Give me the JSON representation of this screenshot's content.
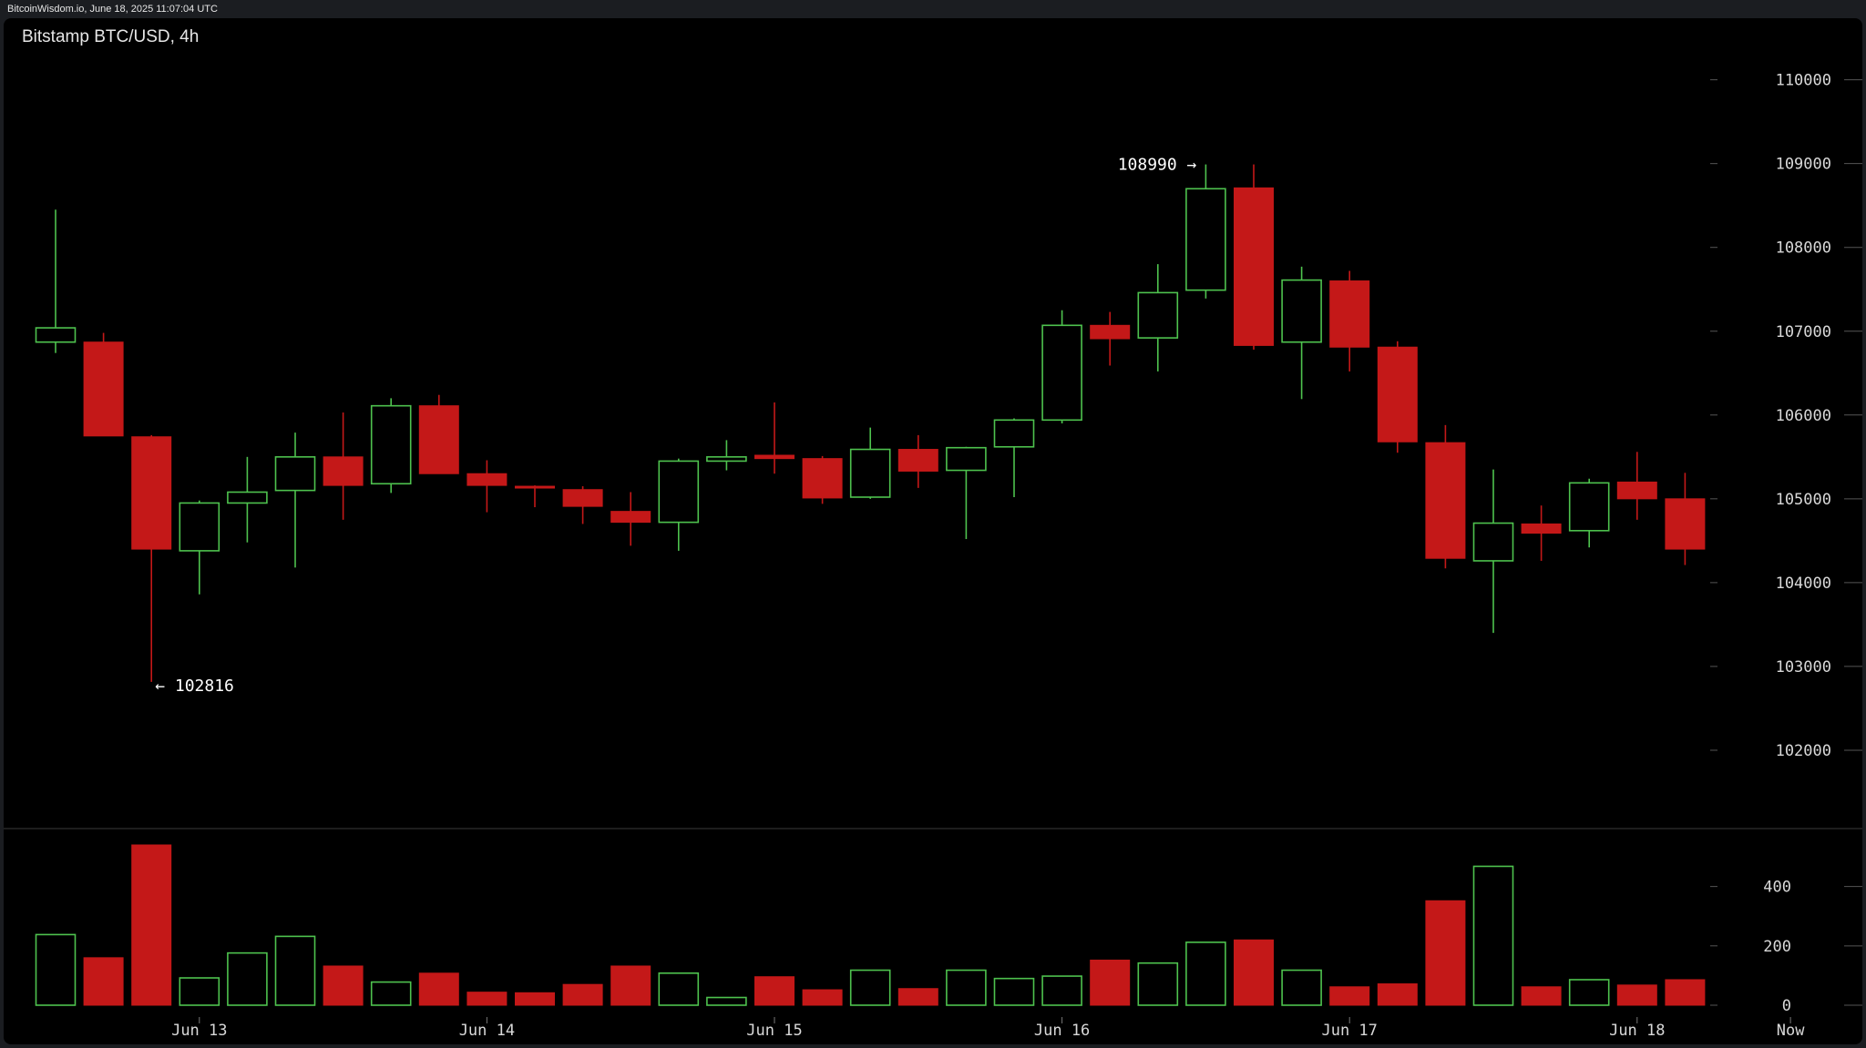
{
  "header": {
    "source_line": "BitcoinWisdom.io, June 18, 2025 11:07:04 UTC"
  },
  "colors": {
    "background": "#000000",
    "up": "#4ec24e",
    "down": "#c41818",
    "axis_text": "#d8d8d8"
  },
  "chart_data": {
    "type": "candlestick",
    "title": "Bitstamp BTC/USD, 4h",
    "price_axis": {
      "ticks": [
        "110000",
        "109000",
        "108000",
        "107000",
        "106000",
        "105000",
        "104000",
        "103000",
        "102000"
      ],
      "range": [
        101500,
        110300
      ]
    },
    "volume_axis": {
      "ticks": [
        "400",
        "200",
        "0"
      ],
      "range": [
        0,
        540
      ]
    },
    "x_labels": [
      {
        "label": "Jun 13",
        "index": 3
      },
      {
        "label": "Jun 14",
        "index": 9
      },
      {
        "label": "Jun 15",
        "index": 15
      },
      {
        "label": "Jun 16",
        "index": 21
      },
      {
        "label": "Jun 17",
        "index": 27
      },
      {
        "label": "Jun 18",
        "index": 33
      },
      {
        "label": "Now",
        "index": 36.2
      }
    ],
    "annotations": [
      {
        "text": "108990 →",
        "index": 24,
        "value": 108990,
        "side": "left"
      },
      {
        "text": "← 102816",
        "index": 2,
        "value": 102816,
        "side": "right"
      }
    ],
    "candles": [
      {
        "o": 106870,
        "h": 108450,
        "l": 106740,
        "c": 107040,
        "v": 238
      },
      {
        "o": 106870,
        "h": 106980,
        "l": 105750,
        "c": 105750,
        "v": 160
      },
      {
        "o": 105740,
        "h": 105760,
        "l": 102816,
        "c": 104400,
        "v": 540
      },
      {
        "o": 104380,
        "h": 104980,
        "l": 103860,
        "c": 104950,
        "v": 92
      },
      {
        "o": 104950,
        "h": 105500,
        "l": 104480,
        "c": 105080,
        "v": 176
      },
      {
        "o": 105100,
        "h": 105790,
        "l": 104180,
        "c": 105500,
        "v": 232
      },
      {
        "o": 105500,
        "h": 106030,
        "l": 104750,
        "c": 105160,
        "v": 132
      },
      {
        "o": 105180,
        "h": 106200,
        "l": 105070,
        "c": 106110,
        "v": 78
      },
      {
        "o": 106110,
        "h": 106240,
        "l": 105300,
        "c": 105300,
        "v": 108
      },
      {
        "o": 105300,
        "h": 105460,
        "l": 104840,
        "c": 105160,
        "v": 44
      },
      {
        "o": 105150,
        "h": 105160,
        "l": 104900,
        "c": 105140,
        "v": 42
      },
      {
        "o": 105110,
        "h": 105150,
        "l": 104700,
        "c": 104910,
        "v": 70
      },
      {
        "o": 104850,
        "h": 105080,
        "l": 104440,
        "c": 104720,
        "v": 132
      },
      {
        "o": 104720,
        "h": 105480,
        "l": 104380,
        "c": 105450,
        "v": 108
      },
      {
        "o": 105450,
        "h": 105700,
        "l": 105340,
        "c": 105500,
        "v": 26
      },
      {
        "o": 105520,
        "h": 106150,
        "l": 105300,
        "c": 105480,
        "v": 96
      },
      {
        "o": 105480,
        "h": 105510,
        "l": 104940,
        "c": 105010,
        "v": 52
      },
      {
        "o": 105020,
        "h": 105850,
        "l": 105000,
        "c": 105590,
        "v": 118
      },
      {
        "o": 105590,
        "h": 105760,
        "l": 105130,
        "c": 105330,
        "v": 56
      },
      {
        "o": 105340,
        "h": 105620,
        "l": 104520,
        "c": 105610,
        "v": 118
      },
      {
        "o": 105620,
        "h": 105960,
        "l": 105020,
        "c": 105940,
        "v": 90
      },
      {
        "o": 105940,
        "h": 107250,
        "l": 105900,
        "c": 107070,
        "v": 98
      },
      {
        "o": 107070,
        "h": 107230,
        "l": 106590,
        "c": 106910,
        "v": 152
      },
      {
        "o": 106920,
        "h": 107800,
        "l": 106520,
        "c": 107460,
        "v": 142
      },
      {
        "o": 107490,
        "h": 108990,
        "l": 107390,
        "c": 108700,
        "v": 212
      },
      {
        "o": 108710,
        "h": 108990,
        "l": 106780,
        "c": 106830,
        "v": 220
      },
      {
        "o": 106870,
        "h": 107770,
        "l": 106190,
        "c": 107610,
        "v": 118
      },
      {
        "o": 107600,
        "h": 107720,
        "l": 106520,
        "c": 106810,
        "v": 62
      },
      {
        "o": 106810,
        "h": 106880,
        "l": 105550,
        "c": 105680,
        "v": 72
      },
      {
        "o": 105670,
        "h": 105880,
        "l": 104170,
        "c": 104290,
        "v": 352
      },
      {
        "o": 104260,
        "h": 105350,
        "l": 103400,
        "c": 104710,
        "v": 468
      },
      {
        "o": 104700,
        "h": 104920,
        "l": 104260,
        "c": 104590,
        "v": 62
      },
      {
        "o": 104620,
        "h": 105240,
        "l": 104420,
        "c": 105190,
        "v": 86
      },
      {
        "o": 105200,
        "h": 105560,
        "l": 104750,
        "c": 105000,
        "v": 68
      },
      {
        "o": 105000,
        "h": 105310,
        "l": 104210,
        "c": 104400,
        "v": 86
      }
    ]
  }
}
